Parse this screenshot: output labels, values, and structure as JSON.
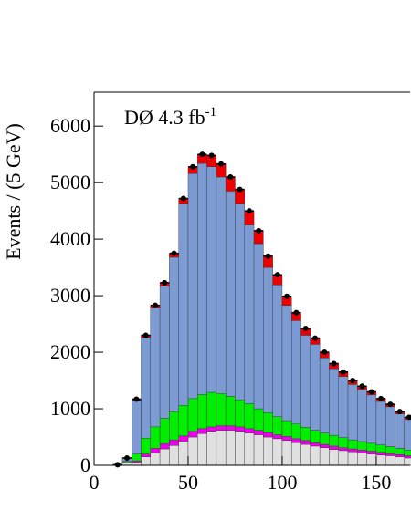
{
  "chart_data": {
    "type": "stacked-histogram",
    "ylabel": "Events / (5 GeV)",
    "annotation": "DØ 4.3 fb",
    "annotation_superscript": "-1",
    "bins": [
      10,
      15,
      20,
      25,
      30,
      35,
      40,
      45,
      50,
      55,
      60,
      65,
      70,
      75,
      80,
      85,
      90,
      95,
      100,
      105,
      110,
      115,
      120,
      125,
      130,
      135,
      140,
      145,
      150,
      155,
      160,
      165,
      170
    ],
    "series": [
      {
        "color": "#e0e0e0",
        "values": [
          5,
          40,
          50,
          150,
          220,
          290,
          350,
          420,
          500,
          560,
          600,
          620,
          620,
          600,
          570,
          540,
          500,
          470,
          440,
          400,
          370,
          340,
          310,
          280,
          260,
          240,
          220,
          200,
          180,
          170,
          150,
          130
        ]
      },
      {
        "color": "#ee00ee",
        "values": [
          0,
          10,
          30,
          50,
          80,
          90,
          100,
          100,
          100,
          90,
          80,
          80,
          80,
          80,
          80,
          80,
          80,
          70,
          70,
          70,
          70,
          60,
          60,
          60,
          50,
          50,
          50,
          50,
          50,
          40,
          40,
          40
        ]
      },
      {
        "color": "#00ee00",
        "values": [
          0,
          20,
          120,
          280,
          380,
          450,
          500,
          540,
          580,
          600,
          610,
          570,
          520,
          480,
          440,
          380,
          350,
          320,
          280,
          260,
          230,
          220,
          200,
          190,
          180,
          160,
          150,
          140,
          130,
          120,
          110,
          100
        ]
      },
      {
        "color": "#7b9bd2",
        "values": [
          5,
          60,
          950,
          1780,
          2100,
          2340,
          2730,
          3560,
          3980,
          4090,
          3990,
          3830,
          3630,
          3460,
          3160,
          2920,
          2570,
          2330,
          2040,
          1830,
          1630,
          1520,
          1330,
          1180,
          1080,
          980,
          920,
          855,
          770,
          705,
          610,
          545
        ]
      },
      {
        "color": "#ee0000",
        "values": [
          0,
          0,
          20,
          40,
          50,
          60,
          70,
          100,
          120,
          160,
          200,
          230,
          250,
          260,
          250,
          230,
          200,
          180,
          160,
          140,
          120,
          110,
          100,
          90,
          80,
          70,
          60,
          55,
          50,
          45,
          40,
          35
        ]
      }
    ],
    "data": {
      "color": "#000000",
      "x": [
        12.5,
        17.5,
        22.5,
        27.5,
        32.5,
        37.5,
        42.5,
        47.5,
        52.5,
        57.5,
        62.5,
        67.5,
        72.5,
        77.5,
        82.5,
        87.5,
        92.5,
        97.5,
        102.5,
        107.5,
        112.5,
        117.5,
        122.5,
        127.5,
        132.5,
        137.5,
        142.5,
        147.5,
        152.5,
        157.5,
        162.5,
        167.5
      ],
      "values": [
        10,
        130,
        1170,
        2300,
        2830,
        3230,
        3750,
        4720,
        5280,
        5500,
        5480,
        5330,
        5100,
        4880,
        4500,
        4150,
        3700,
        3370,
        2990,
        2700,
        2420,
        2250,
        2000,
        1800,
        1650,
        1500,
        1400,
        1300,
        1180,
        1080,
        950,
        850
      ]
    },
    "xlim": [
      0,
      168
    ],
    "ylim": [
      0,
      6600
    ],
    "xticks": [
      0,
      50,
      100,
      150
    ],
    "yticks": [
      0,
      1000,
      2000,
      3000,
      4000,
      5000,
      6000
    ]
  }
}
